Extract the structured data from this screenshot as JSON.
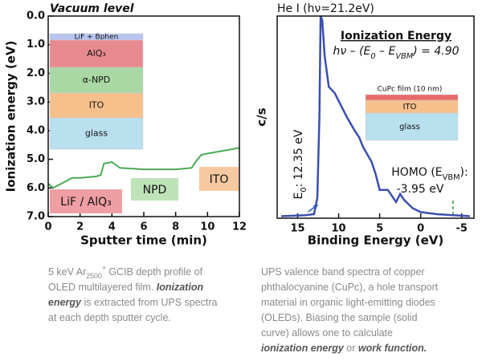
{
  "chart_data": [
    {
      "type": "line",
      "title": "Vacuum level",
      "xlabel": "Sputter time (min)",
      "ylabel": "Ionization energy (eV)",
      "x": [
        0,
        0.3,
        1,
        1.5,
        2,
        3,
        3.3,
        3.5,
        4,
        4.5,
        6,
        8,
        9,
        9.3,
        9.6,
        10,
        11,
        12
      ],
      "series": [
        {
          "color": "#4caa55",
          "values": [
            5.85,
            6.0,
            5.8,
            5.65,
            5.65,
            5.6,
            5.55,
            5.15,
            5.1,
            5.3,
            5.35,
            5.35,
            5.3,
            5.05,
            4.85,
            4.8,
            4.7,
            4.6
          ]
        }
      ],
      "xlim": [
        0,
        12
      ],
      "xticks": [
        0,
        2,
        4,
        6,
        8,
        10,
        12
      ],
      "ylim": [
        0,
        7
      ],
      "y_inverted": true,
      "yticks": [
        {
          "value": 0,
          "label": "0.0"
        },
        {
          "value": 1,
          "label": "1.0"
        },
        {
          "value": 2,
          "label": "2.0"
        },
        {
          "value": 3,
          "label": "3.0"
        },
        {
          "value": 4,
          "label": "4.0"
        },
        {
          "value": 5,
          "label": "5.0"
        },
        {
          "value": 6,
          "label": "6.0"
        },
        {
          "value": 7,
          "label": "7.0"
        }
      ],
      "inset": [
        {
          "label": "LiF + Bphen",
          "color": "#b8c4ee"
        },
        {
          "label": "AlQ₃",
          "color": "#e78a90"
        },
        {
          "label": "α-NPD",
          "color": "#a9d8a4"
        },
        {
          "label": "ITO",
          "color": "#f6c08c"
        },
        {
          "label": "glass",
          "color": "#b9e0ee"
        }
      ],
      "regions": [
        {
          "text": "LiF / AlQ₃",
          "color": "#ef9ea4"
        },
        {
          "text": "NPD",
          "color": "#bfe3b9"
        },
        {
          "text": "ITO",
          "color": "#f8c9a0"
        }
      ]
    },
    {
      "type": "line",
      "title": "He I (hν=21.2eV)",
      "xlabel": "Binding Energy (eV)",
      "ylabel": "c/s",
      "x": [
        17,
        14,
        13,
        12.6,
        12.35,
        12.2,
        12,
        11.7,
        11.2,
        10.5,
        10,
        9,
        8,
        7.5,
        7,
        6,
        5.5,
        5,
        4,
        3,
        2.5,
        2,
        1,
        0,
        -2,
        -4,
        -6
      ],
      "series": [
        {
          "color": "#3a4fb0",
          "values": [
            1,
            1.5,
            2,
            10,
            50,
            100,
            98,
            80,
            65,
            62,
            58,
            50,
            43,
            40,
            35,
            28,
            22,
            14,
            14,
            8,
            12,
            9,
            5,
            3,
            2,
            1.5,
            1
          ]
        }
      ],
      "xlim": [
        17.5,
        -6.5
      ],
      "xticks": [
        15,
        10,
        5,
        0,
        -5
      ],
      "ylim": [
        0,
        100
      ],
      "heading": "Ionization Energy",
      "formula": [
        {
          "text": "hν – (E"
        },
        {
          "text": "0",
          "style": "sub"
        },
        {
          "text": " – E"
        },
        {
          "text": "VBM",
          "style": "sub"
        },
        {
          "text": ") = 4.90"
        }
      ],
      "e0_label": [
        {
          "text": "E"
        },
        {
          "text": "0",
          "style": "sub"
        },
        {
          "text": ": 12.35 eV"
        }
      ],
      "e0": 12.35,
      "homo_label": [
        {
          "text": "HOMO (E"
        },
        {
          "text": "VBM",
          "style": "sub"
        },
        {
          "text": "):"
        }
      ],
      "homo_value_label": "-3.95 eV",
      "homo": -3.95,
      "inset": [
        {
          "label": "CuPc film (10 nm)",
          "color": "#e86a6a"
        },
        {
          "label": "ITO",
          "color": "#f6c08c"
        },
        {
          "label": "glass",
          "color": "#b9e0ee"
        }
      ]
    }
  ],
  "captions": [
    [
      [
        {
          "text": "5 keV Ar"
        },
        {
          "text": "2500",
          "style": "sub"
        },
        {
          "text": "+",
          "style": "sup"
        },
        {
          "text": " GCIB depth profile of"
        }
      ],
      [
        {
          "text": "OLED multilayered film.  "
        },
        {
          "text": "Ionization",
          "style": "emph"
        }
      ],
      [
        {
          "text": "energy",
          "style": "emph"
        },
        {
          "text": " is extracted from UPS spectra"
        }
      ],
      [
        {
          "text": "at each depth sputter cycle."
        }
      ]
    ],
    [
      [
        {
          "text": "UPS valence band spectra of copper"
        }
      ],
      [
        {
          "text": "phthalocyanine (CuPc), a hole transport"
        }
      ],
      [
        {
          "text": "material in organic light-emitting diodes"
        }
      ],
      [
        {
          "text": "(OLEDs).  Biasing the sample (solid"
        }
      ],
      [
        {
          "text": "curve) allows one to calculate"
        }
      ],
      [
        {
          "text": "ionization energy",
          "style": "emph"
        },
        {
          "text": " or "
        },
        {
          "text": "work function.",
          "style": "emph"
        }
      ]
    ]
  ]
}
